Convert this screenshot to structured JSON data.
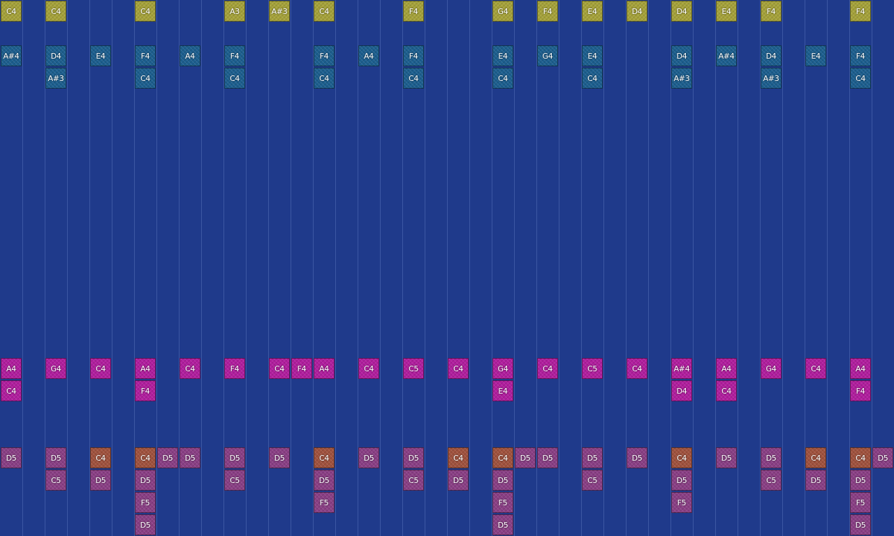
{
  "colors": {
    "background": "#1f3a8b",
    "yellow": "#a5a23a",
    "blue": "#1c5e8e",
    "magenta": "#b11e9e",
    "mauve": "#8a3f85",
    "orange": "#a0523e"
  },
  "tracks": [
    {
      "name": "melody-track",
      "color": "yellow",
      "notes": [
        {
          "col": 0,
          "row": 0,
          "label": "C4"
        },
        {
          "col": 2,
          "row": 0,
          "label": "C4"
        },
        {
          "col": 6,
          "row": 0,
          "label": "C4"
        },
        {
          "col": 10,
          "row": 0,
          "label": "A3"
        },
        {
          "col": 12,
          "row": 0,
          "label": "A#3"
        },
        {
          "col": 14,
          "row": 0,
          "label": "C4"
        },
        {
          "col": 18,
          "row": 0,
          "label": "F4"
        },
        {
          "col": 22,
          "row": 0,
          "label": "G4"
        },
        {
          "col": 24,
          "row": 0,
          "label": "F4"
        },
        {
          "col": 26,
          "row": 0,
          "label": "E4"
        },
        {
          "col": 28,
          "row": 0,
          "label": "D4"
        },
        {
          "col": 30,
          "row": 0,
          "label": "D4"
        },
        {
          "col": 32,
          "row": 0,
          "label": "E4"
        },
        {
          "col": 34,
          "row": 0,
          "label": "F4"
        },
        {
          "col": 38,
          "row": 0,
          "label": "F4"
        }
      ]
    },
    {
      "name": "harmony-track",
      "color": "blue",
      "notes": [
        {
          "col": 0,
          "row": 2,
          "label": "A#4"
        },
        {
          "col": 2,
          "row": 2,
          "label": "D4"
        },
        {
          "col": 2,
          "row": 3,
          "label": "A#3"
        },
        {
          "col": 4,
          "row": 2,
          "label": "E4"
        },
        {
          "col": 6,
          "row": 2,
          "label": "F4"
        },
        {
          "col": 6,
          "row": 3,
          "label": "C4"
        },
        {
          "col": 8,
          "row": 2,
          "label": "A4"
        },
        {
          "col": 10,
          "row": 2,
          "label": "F4"
        },
        {
          "col": 10,
          "row": 3,
          "label": "C4"
        },
        {
          "col": 14,
          "row": 2,
          "label": "F4"
        },
        {
          "col": 14,
          "row": 3,
          "label": "C4"
        },
        {
          "col": 16,
          "row": 2,
          "label": "A4"
        },
        {
          "col": 18,
          "row": 2,
          "label": "F4"
        },
        {
          "col": 18,
          "row": 3,
          "label": "C4"
        },
        {
          "col": 22,
          "row": 2,
          "label": "E4"
        },
        {
          "col": 22,
          "row": 3,
          "label": "C4"
        },
        {
          "col": 24,
          "row": 2,
          "label": "G4"
        },
        {
          "col": 26,
          "row": 2,
          "label": "E4"
        },
        {
          "col": 26,
          "row": 3,
          "label": "C4"
        },
        {
          "col": 30,
          "row": 2,
          "label": "D4"
        },
        {
          "col": 30,
          "row": 3,
          "label": "A#3"
        },
        {
          "col": 32,
          "row": 2,
          "label": "A#4"
        },
        {
          "col": 34,
          "row": 2,
          "label": "D4"
        },
        {
          "col": 34,
          "row": 3,
          "label": "A#3"
        },
        {
          "col": 36,
          "row": 2,
          "label": "E4"
        },
        {
          "col": 38,
          "row": 2,
          "label": "F4"
        },
        {
          "col": 38,
          "row": 3,
          "label": "C4"
        }
      ]
    },
    {
      "name": "chord-track",
      "color": "magenta",
      "notes": [
        {
          "col": 0,
          "row": 16,
          "label": "A4"
        },
        {
          "col": 0,
          "row": 17,
          "label": "C4"
        },
        {
          "col": 2,
          "row": 16,
          "label": "G4"
        },
        {
          "col": 4,
          "row": 16,
          "label": "C4"
        },
        {
          "col": 6,
          "row": 16,
          "label": "A4"
        },
        {
          "col": 6,
          "row": 17,
          "label": "F4"
        },
        {
          "col": 8,
          "row": 16,
          "label": "C4"
        },
        {
          "col": 10,
          "row": 16,
          "label": "F4"
        },
        {
          "col": 12,
          "row": 16,
          "label": "C4"
        },
        {
          "col": 13,
          "row": 16,
          "label": "F4"
        },
        {
          "col": 14,
          "row": 16,
          "label": "A4"
        },
        {
          "col": 16,
          "row": 16,
          "label": "C4"
        },
        {
          "col": 18,
          "row": 16,
          "label": "C5"
        },
        {
          "col": 20,
          "row": 16,
          "label": "C4"
        },
        {
          "col": 22,
          "row": 16,
          "label": "G4"
        },
        {
          "col": 22,
          "row": 17,
          "label": "E4"
        },
        {
          "col": 24,
          "row": 16,
          "label": "C4"
        },
        {
          "col": 26,
          "row": 16,
          "label": "C5"
        },
        {
          "col": 28,
          "row": 16,
          "label": "C4"
        },
        {
          "col": 30,
          "row": 16,
          "label": "A#4"
        },
        {
          "col": 30,
          "row": 17,
          "label": "D4"
        },
        {
          "col": 32,
          "row": 16,
          "label": "A4"
        },
        {
          "col": 32,
          "row": 17,
          "label": "C4"
        },
        {
          "col": 34,
          "row": 16,
          "label": "G4"
        },
        {
          "col": 36,
          "row": 16,
          "label": "C4"
        },
        {
          "col": 38,
          "row": 16,
          "label": "A4"
        },
        {
          "col": 38,
          "row": 17,
          "label": "F4"
        }
      ]
    },
    {
      "name": "bass-track",
      "color": "mauve",
      "notes": [
        {
          "col": 0,
          "row": 20,
          "label": "D5"
        },
        {
          "col": 2,
          "row": 20,
          "label": "D5"
        },
        {
          "col": 2,
          "row": 21,
          "label": "C5"
        },
        {
          "col": 4,
          "row": 20,
          "label": "C4",
          "color": "orange"
        },
        {
          "col": 4,
          "row": 21,
          "label": "D5"
        },
        {
          "col": 6,
          "row": 20,
          "label": "C4",
          "color": "orange"
        },
        {
          "col": 6,
          "row": 21,
          "label": "D5"
        },
        {
          "col": 6,
          "row": 22,
          "label": "F5"
        },
        {
          "col": 6,
          "row": 23,
          "label": "D5"
        },
        {
          "col": 7,
          "row": 20,
          "label": "D5"
        },
        {
          "col": 8,
          "row": 20,
          "label": "D5"
        },
        {
          "col": 10,
          "row": 20,
          "label": "D5"
        },
        {
          "col": 10,
          "row": 21,
          "label": "C5"
        },
        {
          "col": 12,
          "row": 20,
          "label": "D5"
        },
        {
          "col": 14,
          "row": 20,
          "label": "C4",
          "color": "orange"
        },
        {
          "col": 14,
          "row": 21,
          "label": "D5"
        },
        {
          "col": 14,
          "row": 22,
          "label": "F5"
        },
        {
          "col": 16,
          "row": 20,
          "label": "D5"
        },
        {
          "col": 18,
          "row": 20,
          "label": "D5"
        },
        {
          "col": 18,
          "row": 21,
          "label": "C5"
        },
        {
          "col": 20,
          "row": 20,
          "label": "C4",
          "color": "orange"
        },
        {
          "col": 20,
          "row": 21,
          "label": "D5"
        },
        {
          "col": 22,
          "row": 20,
          "label": "C4",
          "color": "orange"
        },
        {
          "col": 22,
          "row": 21,
          "label": "D5"
        },
        {
          "col": 22,
          "row": 22,
          "label": "F5"
        },
        {
          "col": 22,
          "row": 23,
          "label": "D5"
        },
        {
          "col": 23,
          "row": 20,
          "label": "D5"
        },
        {
          "col": 24,
          "row": 20,
          "label": "D5"
        },
        {
          "col": 26,
          "row": 20,
          "label": "D5"
        },
        {
          "col": 26,
          "row": 21,
          "label": "C5"
        },
        {
          "col": 28,
          "row": 20,
          "label": "D5"
        },
        {
          "col": 30,
          "row": 20,
          "label": "C4",
          "color": "orange"
        },
        {
          "col": 30,
          "row": 21,
          "label": "D5"
        },
        {
          "col": 30,
          "row": 22,
          "label": "F5"
        },
        {
          "col": 32,
          "row": 20,
          "label": "D5"
        },
        {
          "col": 34,
          "row": 20,
          "label": "D5"
        },
        {
          "col": 34,
          "row": 21,
          "label": "C5"
        },
        {
          "col": 36,
          "row": 20,
          "label": "C4",
          "color": "orange"
        },
        {
          "col": 36,
          "row": 21,
          "label": "D5"
        },
        {
          "col": 38,
          "row": 20,
          "label": "C4",
          "color": "orange"
        },
        {
          "col": 38,
          "row": 21,
          "label": "D5"
        },
        {
          "col": 38,
          "row": 22,
          "label": "F5"
        },
        {
          "col": 38,
          "row": 23,
          "label": "D5"
        },
        {
          "col": 39,
          "row": 20,
          "label": "D5"
        }
      ]
    }
  ]
}
